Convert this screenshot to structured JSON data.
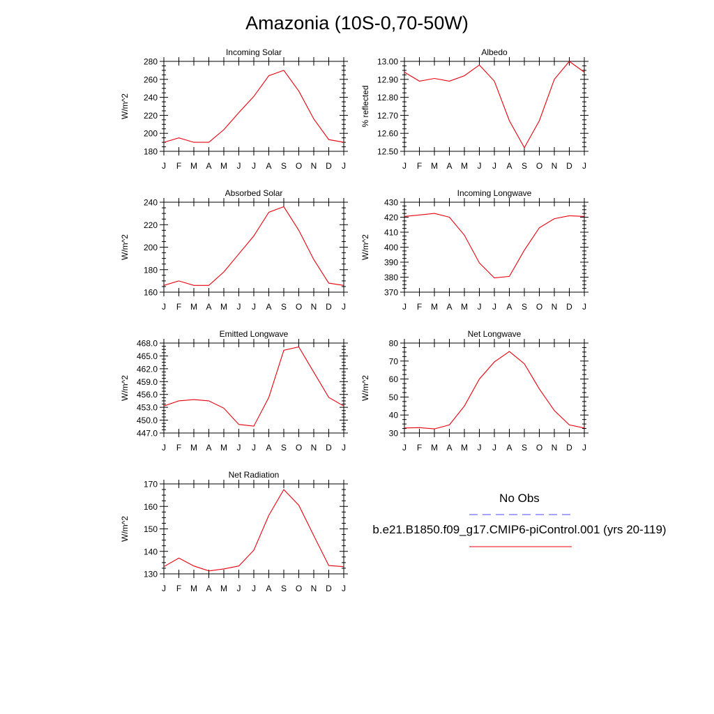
{
  "title": "Amazonia (10S-0,70-50W)",
  "colors": {
    "model": "#e8000b",
    "obs": "#4b4bff",
    "axis": "#000000"
  },
  "legend": {
    "obs_label": "No Obs",
    "model_label": "b.e21.B1850.f09_g17.CMIP6-piControl.001 (yrs 20-119)"
  },
  "chart_data": [
    {
      "type": "line",
      "title": "Incoming Solar",
      "ylabel": "W/m^2",
      "ylim": [
        180,
        280
      ],
      "yticks": [
        "180",
        "200",
        "220",
        "240",
        "260",
        "280"
      ],
      "x": [
        "J",
        "F",
        "M",
        "A",
        "M",
        "J",
        "J",
        "A",
        "S",
        "O",
        "N",
        "D",
        "J"
      ],
      "series": [
        {
          "values": [
            190,
            195,
            190,
            190,
            204,
            223,
            241,
            264,
            270,
            247,
            216,
            193,
            190
          ]
        }
      ]
    },
    {
      "type": "line",
      "title": "Albedo",
      "ylabel": "% reflected",
      "ylim": [
        12.5,
        13.0
      ],
      "yticks": [
        "12.50",
        "12.60",
        "12.70",
        "12.80",
        "12.90",
        "13.00"
      ],
      "x": [
        "J",
        "F",
        "M",
        "A",
        "M",
        "J",
        "J",
        "A",
        "S",
        "O",
        "N",
        "D",
        "J"
      ],
      "series": [
        {
          "values": [
            12.94,
            12.89,
            12.905,
            12.89,
            12.92,
            12.98,
            12.89,
            12.67,
            12.52,
            12.67,
            12.9,
            13.0,
            12.94
          ]
        }
      ]
    },
    {
      "type": "line",
      "title": "Absorbed Solar",
      "ylabel": "W/m^2",
      "ylim": [
        160,
        240
      ],
      "yticks": [
        "160",
        "180",
        "200",
        "220",
        "240"
      ],
      "x": [
        "J",
        "F",
        "M",
        "A",
        "M",
        "J",
        "J",
        "A",
        "S",
        "O",
        "N",
        "D",
        "J"
      ],
      "series": [
        {
          "values": [
            166,
            170,
            166,
            166,
            178,
            194,
            210,
            231,
            236,
            215,
            189,
            168,
            166
          ]
        }
      ]
    },
    {
      "type": "line",
      "title": "Incoming Longwave",
      "ylabel": "W/m^2",
      "ylim": [
        370,
        430
      ],
      "yticks": [
        "370",
        "380",
        "390",
        "400",
        "410",
        "420",
        "430"
      ],
      "x": [
        "J",
        "F",
        "M",
        "A",
        "M",
        "J",
        "J",
        "A",
        "S",
        "O",
        "N",
        "D",
        "J"
      ],
      "series": [
        {
          "values": [
            420.5,
            421.5,
            422.5,
            420,
            408,
            389.5,
            379.5,
            380.5,
            398,
            413,
            419,
            421,
            420.5
          ]
        }
      ]
    },
    {
      "type": "line",
      "title": "Emitted Longwave",
      "ylabel": "W/m^2",
      "ylim": [
        447,
        468
      ],
      "yticks": [
        "447.0",
        "450.0",
        "453.0",
        "456.0",
        "459.0",
        "462.0",
        "465.0",
        "468.0"
      ],
      "x": [
        "J",
        "F",
        "M",
        "A",
        "M",
        "J",
        "J",
        "A",
        "S",
        "O",
        "N",
        "D",
        "J"
      ],
      "series": [
        {
          "values": [
            453.3,
            454.5,
            454.8,
            454.5,
            452.8,
            449.0,
            448.6,
            455.3,
            466.3,
            467.1,
            461.2,
            455.3,
            453.3
          ]
        }
      ]
    },
    {
      "type": "line",
      "title": "Net Longwave",
      "ylabel": "W/m^2",
      "ylim": [
        30,
        80
      ],
      "yticks": [
        "30",
        "40",
        "50",
        "60",
        "70",
        "80"
      ],
      "x": [
        "J",
        "F",
        "M",
        "A",
        "M",
        "J",
        "J",
        "A",
        "S",
        "O",
        "N",
        "D",
        "J"
      ],
      "series": [
        {
          "values": [
            32.8,
            33,
            32.3,
            34.5,
            45,
            60,
            69.5,
            75.3,
            68.5,
            54.5,
            42.5,
            34.5,
            32.8
          ]
        }
      ]
    },
    {
      "type": "line",
      "title": "Net Radiation",
      "ylabel": "W/m^2",
      "ylim": [
        130,
        170
      ],
      "yticks": [
        "130",
        "140",
        "150",
        "160",
        "170"
      ],
      "x": [
        "J",
        "F",
        "M",
        "A",
        "M",
        "J",
        "J",
        "A",
        "S",
        "O",
        "N",
        "D",
        "J"
      ],
      "series": [
        {
          "values": [
            133.2,
            137,
            133.5,
            131.3,
            132.2,
            133.5,
            140.5,
            156,
            167.5,
            160.5,
            147,
            133.7,
            133.2
          ]
        }
      ]
    }
  ]
}
